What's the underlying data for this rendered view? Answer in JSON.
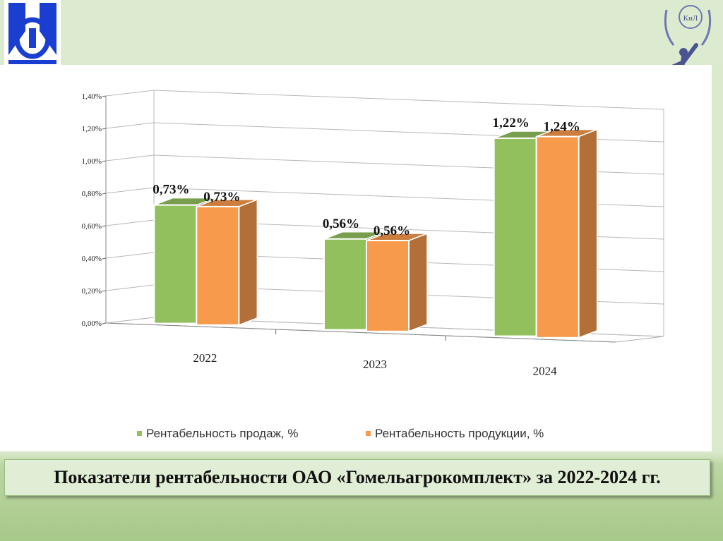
{
  "colors": {
    "series_sales": "#92c05d",
    "series_product": "#f79a4c",
    "logo_blue": "#1a3fd0"
  },
  "icons": {
    "left_logo": "emblem-logo-icon",
    "right_logo": "mercury-statue-logo-icon"
  },
  "right_logo_text": "КиЛ",
  "caption": "Показатели рентабельности  ОАО «Гомельагрокомплект» за 2022-2024 гг.",
  "chart_data": {
    "type": "bar",
    "categories": [
      "2022",
      "2023",
      "2024"
    ],
    "series": [
      {
        "name": "Рентабельность продаж, %",
        "values": [
          0.73,
          0.56,
          1.22
        ],
        "labels": [
          "0,73%",
          "0,56%",
          "1,22%"
        ]
      },
      {
        "name": "Рентабельность продукции, %",
        "values": [
          0.73,
          0.56,
          1.24
        ],
        "labels": [
          "0,73%",
          "0,56%",
          "1,24%"
        ]
      }
    ],
    "y_ticks": [
      "0,00%",
      "0,20%",
      "0,40%",
      "0,60%",
      "0,80%",
      "1,00%",
      "1,20%",
      "1,40%"
    ],
    "ylim": [
      0,
      1.4
    ],
    "grid": true,
    "legend_position": "bottom",
    "style": "3d-clustered"
  }
}
